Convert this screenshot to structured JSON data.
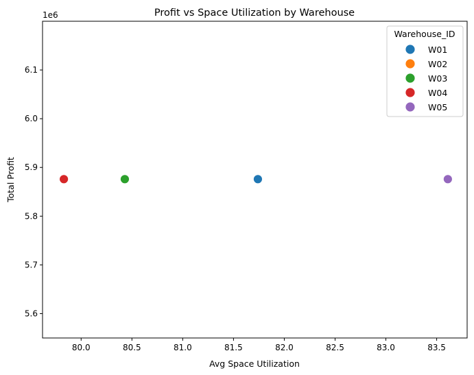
{
  "chart_data": {
    "type": "scatter",
    "title": "Profit vs Space Utilization by Warehouse",
    "xlabel": "Avg Space Utilization",
    "ylabel": "Total Profit",
    "y_offset_text": "1e6",
    "xlim": [
      79.62,
      83.8
    ],
    "ylim": [
      5.55,
      6.2
    ],
    "y_scale_factor": 1000000,
    "x_ticks": [
      80.0,
      80.5,
      81.0,
      81.5,
      82.0,
      82.5,
      83.0,
      83.5
    ],
    "x_tick_labels": [
      "80.0",
      "80.5",
      "81.0",
      "81.5",
      "82.0",
      "82.5",
      "83.0",
      "83.5"
    ],
    "y_ticks": [
      5.6,
      5.7,
      5.8,
      5.9,
      6.0,
      6.1
    ],
    "y_tick_labels": [
      "5.6",
      "5.7",
      "5.8",
      "5.9",
      "6.0",
      "6.1"
    ],
    "grid": false,
    "legend_title": "Warehouse_ID",
    "legend_position": "top-right",
    "series": [
      {
        "name": "W01",
        "color": "#1f77b4",
        "points": [
          {
            "x": 81.74,
            "y": 5.876
          }
        ]
      },
      {
        "name": "W02",
        "color": "#ff7f0e",
        "points": []
      },
      {
        "name": "W03",
        "color": "#2ca02c",
        "points": [
          {
            "x": 80.43,
            "y": 5.876
          }
        ]
      },
      {
        "name": "W04",
        "color": "#d62728",
        "points": [
          {
            "x": 79.83,
            "y": 5.876
          }
        ]
      },
      {
        "name": "W05",
        "color": "#9467bd",
        "points": [
          {
            "x": 83.61,
            "y": 5.876
          }
        ]
      }
    ]
  }
}
